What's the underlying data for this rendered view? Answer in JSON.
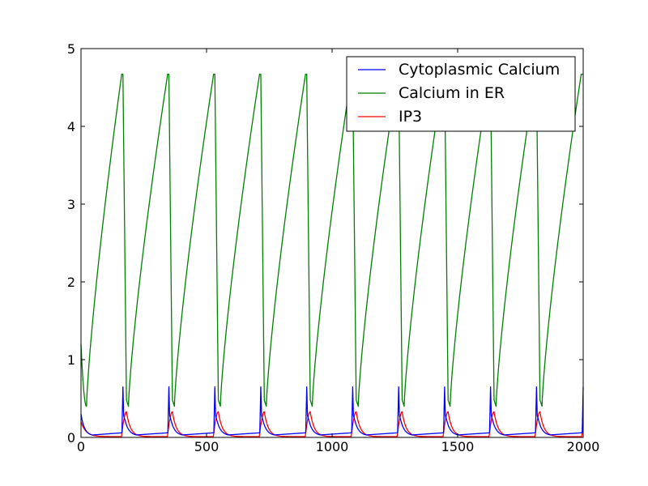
{
  "chart_data": {
    "type": "line",
    "title": "",
    "xlabel": "",
    "ylabel": "",
    "xlim": [
      0,
      2000
    ],
    "ylim": [
      0,
      5
    ],
    "xticks": [
      0,
      500,
      1000,
      1500,
      2000
    ],
    "yticks": [
      0,
      1,
      2,
      3,
      4,
      5
    ],
    "grid": false,
    "legend_position": "top-right",
    "oscillation": {
      "period": 183,
      "spike_times": [
        167,
        350,
        533,
        716,
        899,
        1082,
        1265,
        1448,
        1631,
        1814,
        2000
      ]
    },
    "series": [
      {
        "name": "Cytoplasmic Calcium",
        "color": "#0000ff",
        "baseline_min": 0.02,
        "pre_spike_level": 0.06,
        "peak": 0.65,
        "initial_value": 0.3
      },
      {
        "name": "Calcium in ER",
        "color": "#008000",
        "min": 0.4,
        "peak": 4.67,
        "initial_value": 1.2
      },
      {
        "name": "IP3",
        "color": "#ff0000",
        "baseline_min": 0.01,
        "peak": 0.33,
        "initial_value": 0.2
      }
    ]
  }
}
